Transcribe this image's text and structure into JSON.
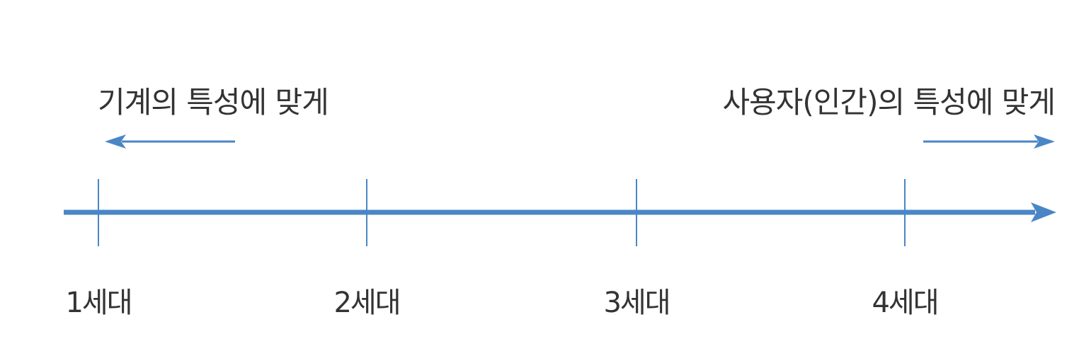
{
  "diagram": {
    "left_caption": "기계의 특성에 맞게",
    "right_caption": "사용자(인간)의 특성에 맞게",
    "generations": [
      "1세대",
      "2세대",
      "3세대",
      "4세대"
    ],
    "line_color": "#4a86c5",
    "text_color": "#333333"
  }
}
